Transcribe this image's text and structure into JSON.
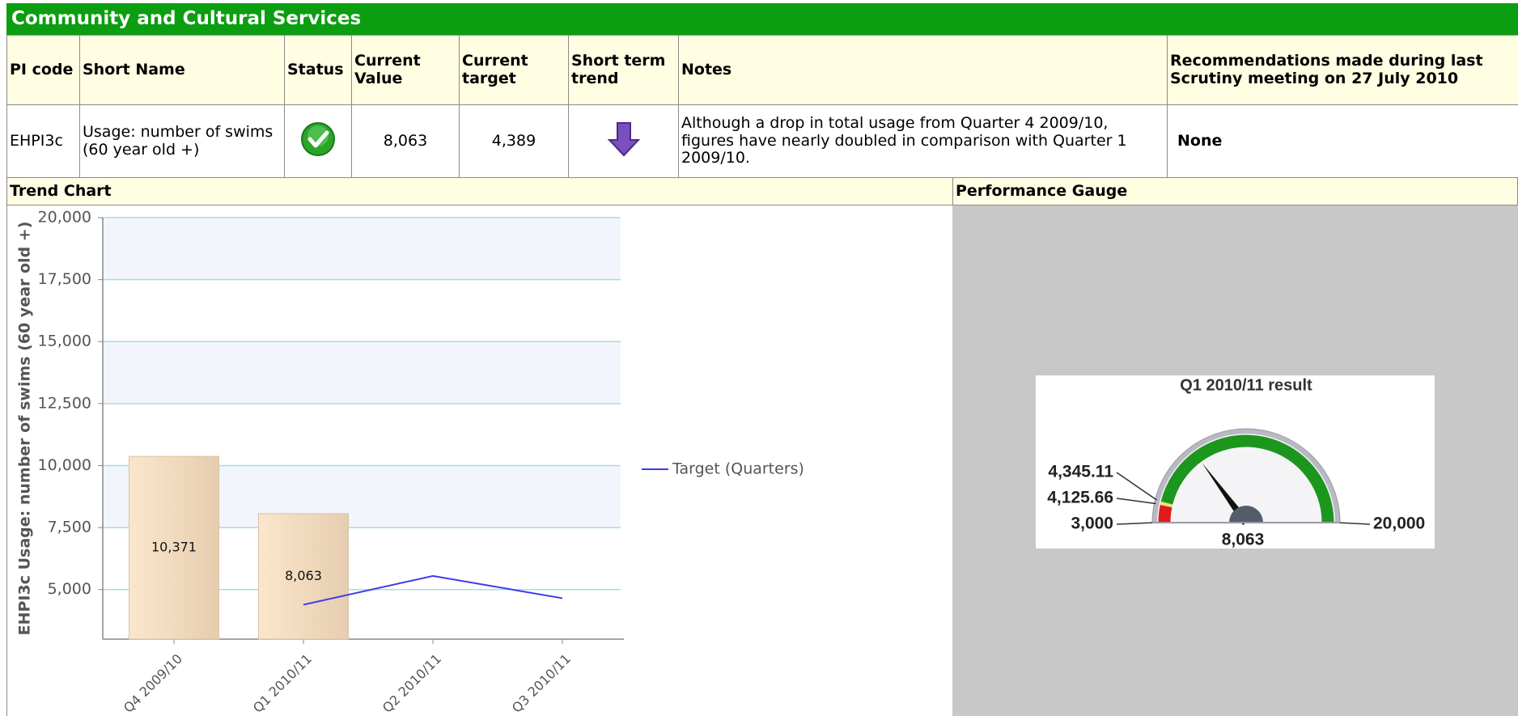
{
  "header": {
    "title": "Community and Cultural Services"
  },
  "table": {
    "columns": [
      "PI code",
      "Short Name",
      "Status",
      "Current Value",
      "Current target",
      "Short term trend",
      "Notes",
      "Recommendations made during last Scrutiny meeting on 27 July 2010"
    ],
    "rows": [
      {
        "pi_code": "EHPI3c",
        "short_name": "Usage: number of swims (60 year old +)",
        "current_value": "8,063",
        "current_target": "4,389",
        "notes": "Although a drop in total usage from Quarter 4 2009/10, figures have nearly doubled in comparison with Quarter 1 2009/10.",
        "recommendations": "None"
      }
    ]
  },
  "sections": [
    "Trend Chart",
    "Performance Gauge"
  ],
  "chart_data": [
    {
      "type": "bar",
      "y_label": "EHPI3c Usage: number of swims (60 year old +)",
      "categories": [
        "Q4 2009/10",
        "Q1 2010/11",
        "Q2 2010/11",
        "Q3 2010/11"
      ],
      "values": [
        10371,
        8063,
        null,
        null
      ],
      "value_labels": [
        "10,371",
        "8,063",
        null,
        null
      ],
      "color": "#f2d7b8",
      "series": [
        {
          "name": "Target (Quarters)",
          "type": "line",
          "color": "#3b3bea",
          "values": [
            null,
            4389,
            5550,
            4650
          ]
        }
      ],
      "ylim": [
        3000,
        20000
      ],
      "yticks": [
        {
          "value": 5000,
          "label": "5,000"
        },
        {
          "value": 7500,
          "label": "7,500"
        },
        {
          "value": 10000,
          "label": "10,000"
        },
        {
          "value": 12500,
          "label": "12,500"
        },
        {
          "value": 15000,
          "label": "15,000"
        },
        {
          "value": 17500,
          "label": "17,500"
        },
        {
          "value": 20000,
          "label": "20,000"
        }
      ],
      "grid": true,
      "legend": "right"
    },
    {
      "type": "gauge",
      "title": "Q1 2010/11 result",
      "lim": [
        3000,
        20000
      ],
      "value": 8063,
      "value_label": "8,063",
      "ticks": [
        {
          "value": 3000,
          "label": "3,000"
        },
        {
          "value": 4125.66,
          "label": "4,125.66"
        },
        {
          "value": 4345.11,
          "label": "4,345.11"
        },
        {
          "value": 20000,
          "label": "20,000"
        }
      ],
      "band_colors": [
        "#e01b1b",
        "#e4e47a",
        "#1d961d"
      ]
    }
  ]
}
